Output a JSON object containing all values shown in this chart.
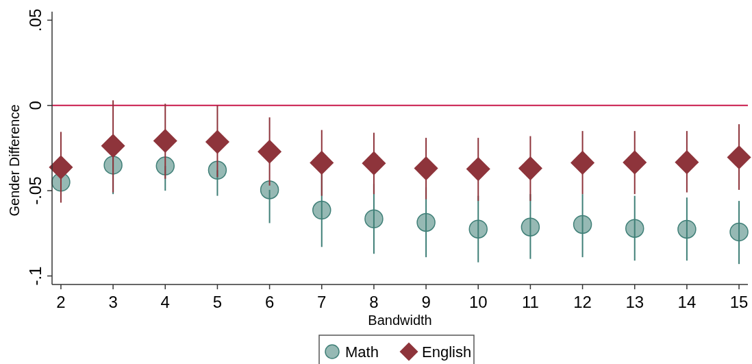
{
  "chart_data": {
    "type": "scatter",
    "xlabel": "Bandwidth",
    "ylabel": "Gender Difference",
    "x": [
      2,
      3,
      4,
      5,
      6,
      7,
      8,
      9,
      10,
      11,
      12,
      13,
      14,
      15
    ],
    "xlim": [
      1.83,
      15.17
    ],
    "xticks": [
      2,
      3,
      4,
      5,
      6,
      7,
      8,
      9,
      10,
      11,
      12,
      13,
      14,
      15
    ],
    "ylim": [
      -0.105,
      0.055
    ],
    "yticks": [
      {
        "value": -0.1,
        "label": "-.1"
      },
      {
        "value": -0.05,
        "label": "-.05"
      },
      0,
      {
        "value": 0.05,
        "label": ".05"
      }
    ],
    "grid": false,
    "legend": "bottom",
    "ref_lines": [
      {
        "axis": "y",
        "value": 0,
        "color": "#c8184a"
      }
    ],
    "series": [
      {
        "name": "Math",
        "color": "#3f7f77",
        "marker": "circle",
        "values": [
          -0.045,
          -0.035,
          -0.0355,
          -0.038,
          -0.0495,
          -0.0614,
          -0.0665,
          -0.0686,
          -0.0725,
          -0.0713,
          -0.0698,
          -0.0721,
          -0.0726,
          -0.0742
        ],
        "errors": [
          null,
          [
            -0.052,
            -0.018
          ],
          [
            -0.05,
            -0.0355
          ],
          [
            -0.053,
            -0.038
          ],
          [
            -0.069,
            -0.0495
          ],
          [
            -0.083,
            -0.04
          ],
          [
            -0.087,
            -0.046
          ],
          [
            -0.089,
            -0.048
          ],
          [
            -0.092,
            -0.053
          ],
          [
            -0.09,
            -0.052
          ],
          [
            -0.089,
            -0.052
          ],
          [
            -0.091,
            -0.053
          ],
          [
            -0.091,
            -0.054
          ],
          [
            -0.093,
            -0.056
          ]
        ]
      },
      {
        "name": "English",
        "color": "#8e343b",
        "marker": "diamond",
        "values": [
          -0.0363,
          -0.0237,
          -0.0208,
          -0.0214,
          -0.0271,
          -0.0336,
          -0.0339,
          -0.0369,
          -0.0373,
          -0.0369,
          -0.0336,
          -0.0334,
          -0.0333,
          -0.0304
        ],
        "errors": [
          [
            -0.057,
            -0.0155
          ],
          [
            -0.051,
            0.003
          ],
          [
            -0.043,
            0.001
          ],
          [
            -0.042,
            0
          ],
          [
            -0.047,
            -0.007
          ],
          [
            -0.053,
            -0.0144
          ],
          [
            -0.052,
            -0.016
          ],
          [
            -0.055,
            -0.019
          ],
          [
            -0.056,
            -0.019
          ],
          [
            -0.056,
            -0.018
          ],
          [
            -0.052,
            -0.015
          ],
          [
            -0.052,
            -0.015
          ],
          [
            -0.051,
            -0.015
          ],
          [
            -0.0495,
            -0.011
          ]
        ]
      }
    ]
  }
}
